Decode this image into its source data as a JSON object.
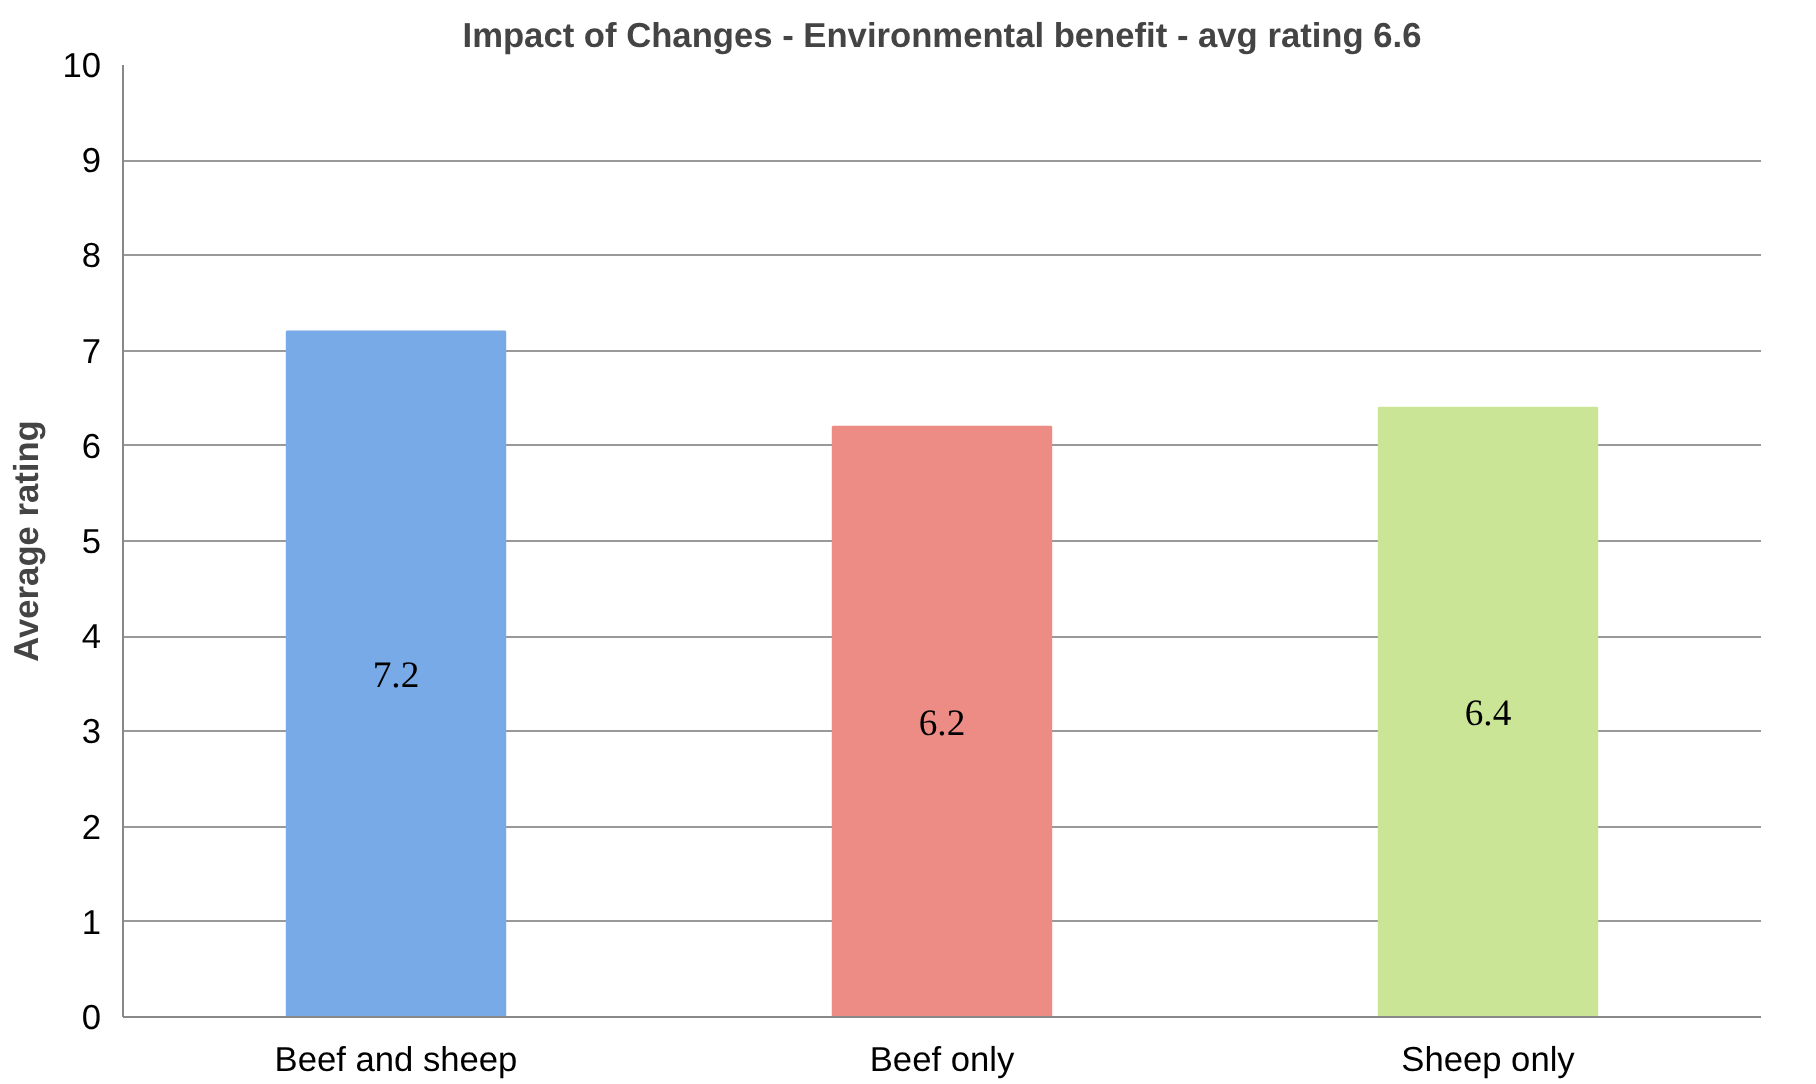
{
  "chart_data": {
    "type": "bar",
    "title": "Impact of Changes - Environmental benefit - avg rating 6.6",
    "ylabel": "Average rating",
    "categories": [
      "Beef and sheep",
      "Beef only",
      "Sheep only"
    ],
    "values": [
      7.2,
      6.2,
      6.4
    ],
    "colors": [
      "#78aae8",
      "#ec8c84",
      "#cbe596"
    ],
    "ylim": [
      0,
      10
    ],
    "yticks": [
      0,
      1,
      2,
      3,
      4,
      5,
      6,
      7,
      8,
      9,
      10
    ],
    "grid": "y",
    "data_labels": true
  }
}
